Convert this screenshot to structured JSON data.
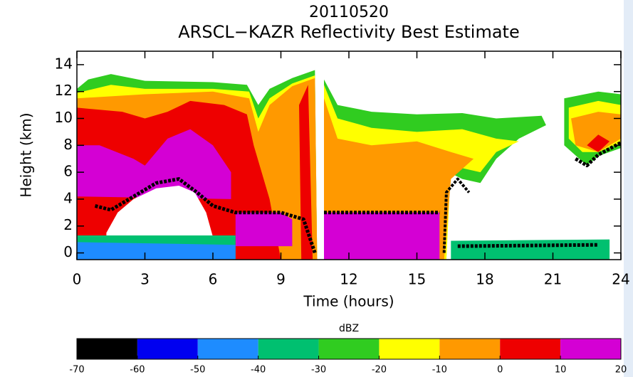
{
  "chart_data": {
    "type": "heatmap",
    "title": "20110520",
    "subtitle": "ARSCL−KAZR Reflectivity Best Estimate",
    "x_label": "Time (hours)",
    "y_label": "Height (km)",
    "xlim": [
      0,
      24
    ],
    "xticks": [
      0,
      3,
      6,
      9,
      12,
      15,
      18,
      21,
      24
    ],
    "ylim": [
      -0.5,
      15
    ],
    "yticks": [
      0,
      2,
      4,
      6,
      8,
      10,
      12,
      14
    ],
    "colorbar": {
      "label": "dBZ",
      "bins": [
        -70,
        -60,
        -50,
        -40,
        -30,
        -20,
        -10,
        0,
        10,
        20
      ],
      "colors": [
        "#000000",
        "#0000f0",
        "#1e8cff",
        "#00c070",
        "#30cc20",
        "#ffff00",
        "#ff9900",
        "#ee0000",
        "#d400d4"
      ]
    }
  }
}
